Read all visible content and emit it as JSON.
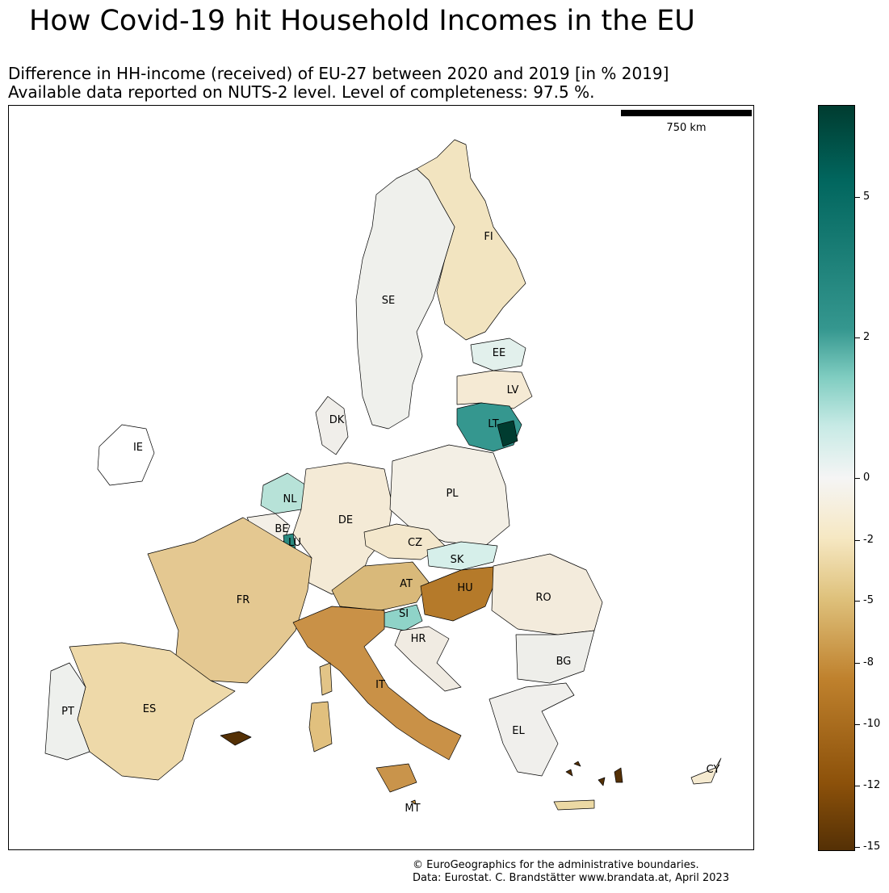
{
  "title": "How Covid-19 hit Household Incomes in the EU",
  "subtitle_line1": "Difference in HH-income (received) of EU-27 between 2020 and 2019 [in % 2019]",
  "subtitle_line2": "Available data reported on NUTS-2 level. Level of completeness: 97.5 %.",
  "scale_bar_label": "750 km",
  "colorbar": {
    "colormap": "BrBG",
    "min": -15,
    "max": 7,
    "ticks": [
      "5",
      "2",
      "0",
      "-2",
      "-5",
      "-8",
      "-10",
      "-12",
      "-15"
    ]
  },
  "country_labels": {
    "FI": "FI",
    "SE": "SE",
    "EE": "EE",
    "LV": "LV",
    "LT": "LT",
    "DK": "DK",
    "IE": "IE",
    "NL": "NL",
    "PL": "PL",
    "DE": "DE",
    "BE": "BE",
    "LU": "LU",
    "CZ": "CZ",
    "SK": "SK",
    "AT": "AT",
    "HU": "HU",
    "FR": "FR",
    "RO": "RO",
    "SI": "SI",
    "HR": "HR",
    "BG": "BG",
    "IT": "IT",
    "PT": "PT",
    "ES": "ES",
    "EL": "EL",
    "CY": "CY",
    "MT": "MT"
  },
  "credit_line1": "© EuroGeographics for the administrative boundaries.",
  "credit_line2": "Data: Eurostat. C. Brandstätter www.brandata.at, April 2023"
}
